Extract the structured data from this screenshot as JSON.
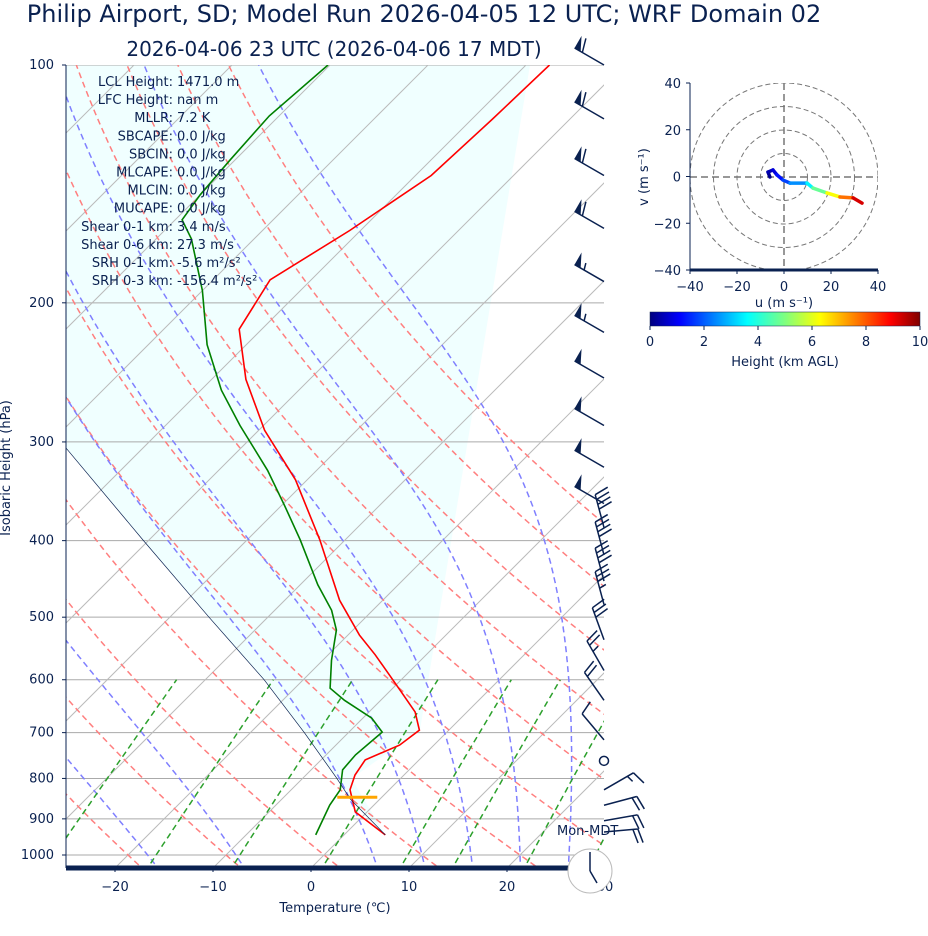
{
  "title": "Philip Airport, SD; Model Run 2026-04-05 12 UTC; WRF Domain 02",
  "subtitle": "2026-04-06 23 UTC  (2026-04-06 17 MDT)",
  "stats": [
    {
      "label": "LCL Height:",
      "value": "1471.0 m"
    },
    {
      "label": "LFC Height:",
      "value": "nan m"
    },
    {
      "label": "MLLR:",
      "value": "7.2 K"
    },
    {
      "label": "SBCAPE:",
      "value": "0.0 J/kg"
    },
    {
      "label": "SBCIN:",
      "value": "0.0 J/kg"
    },
    {
      "label": "MLCAPE:",
      "value": "0.0 J/kg"
    },
    {
      "label": "MLCIN:",
      "value": "0.0 J/kg"
    },
    {
      "label": "MUCAPE:",
      "value": "0.0 J/kg"
    },
    {
      "label": "Shear 0-1 km:",
      "value": "3.4 m/s"
    },
    {
      "label": "Shear 0-6 km:",
      "value": "27.3 m/s"
    },
    {
      "label": "SRH 0-1 km:",
      "value": "-5.6 m²/s²"
    },
    {
      "label": "SRH 0-3 km:",
      "value": "-156.4 m²/s²"
    }
  ],
  "clock_label": "Mon-MDT",
  "colors": {
    "temperature": "#ff0000",
    "dewpoint": "#008000",
    "parcel": "#0a2150",
    "dry_adiabat": "#ff7f7f",
    "moist_adiabat": "#7f7fff",
    "mixing_ratio": "#2ca02c",
    "isotherm": "#bbbbbb",
    "cape_cin_shade": "#f0ffff",
    "lcl_marker": "#ffa500",
    "text": "#0a2150"
  },
  "chart_data": [
    {
      "type": "line",
      "kind": "skew-t log-p",
      "xlabel": "Temperature (℃)",
      "ylabel": "Isobaric Height (hPa)",
      "xlim": [
        -25,
        30
      ],
      "ylim": [
        1035,
        100
      ],
      "y_scale": "log",
      "xticks": [
        "-20",
        "-10",
        "0",
        "10",
        "20",
        "30"
      ],
      "yticks": [
        "100",
        "200",
        "300",
        "400",
        "500",
        "600",
        "700",
        "800",
        "900",
        "1000"
      ],
      "grid": true,
      "series": [
        {
          "role": "temperature",
          "p": [
            943,
            882,
            827,
            792,
            758,
            726,
            695,
            659,
            618,
            558,
            527,
            476,
            399,
            335,
            290,
            250,
            216,
            187,
            162,
            138,
            117,
            100
          ],
          "T": [
            4.2,
            -1.2,
            -4.0,
            -5.0,
            -5.5,
            -3.5,
            -3.0,
            -5.3,
            -9.1,
            -15.2,
            -18.8,
            -24.4,
            -32.6,
            -41.2,
            -49.4,
            -56.5,
            -62.3,
            -64.2,
            -61.1,
            -58.4,
            -57.9,
            -57.6
          ]
        },
        {
          "role": "dewpoint",
          "p": [
            943,
            865,
            827,
            780,
            747,
            699,
            671,
            637,
            615,
            567,
            519,
            490,
            455,
            399,
            361,
            326,
            286,
            258,
            226,
            193,
            166,
            157,
            146,
            132,
            116,
            100
          ],
          "T": [
            -2.9,
            -4.5,
            -5.0,
            -6.8,
            -7.0,
            -6.6,
            -9.1,
            -13.7,
            -16.4,
            -19.1,
            -21.7,
            -24.2,
            -28.2,
            -34.6,
            -39.7,
            -45.0,
            -52.4,
            -57.9,
            -64.0,
            -70.0,
            -76.4,
            -79.3,
            -80.0,
            -80.5,
            -81.0,
            -80.2
          ]
        },
        {
          "role": "parcel",
          "p": [
            943,
            850,
            800,
            700,
            600,
            500,
            400,
            300
          ],
          "T": [
            4.2,
            -3.0,
            -6.5,
            -14.5,
            -24.0,
            -36.0,
            -50.5,
            -69.0
          ]
        }
      ],
      "lcl": {
        "p": 845,
        "T": -2.5
      },
      "wind_barbs": [
        {
          "p": 100,
          "dir": 300,
          "kt": 60
        },
        {
          "p": 117,
          "dir": 300,
          "kt": 60
        },
        {
          "p": 138,
          "dir": 300,
          "kt": 60
        },
        {
          "p": 161,
          "dir": 300,
          "kt": 60
        },
        {
          "p": 188,
          "dir": 300,
          "kt": 55
        },
        {
          "p": 218,
          "dir": 300,
          "kt": 55
        },
        {
          "p": 249,
          "dir": 300,
          "kt": 50
        },
        {
          "p": 286,
          "dir": 300,
          "kt": 50
        },
        {
          "p": 323,
          "dir": 300,
          "kt": 50
        },
        {
          "p": 359,
          "dir": 300,
          "kt": 50
        },
        {
          "p": 385,
          "dir": 345,
          "kt": 40
        },
        {
          "p": 417,
          "dir": 345,
          "kt": 40
        },
        {
          "p": 450,
          "dir": 345,
          "kt": 40
        },
        {
          "p": 482,
          "dir": 345,
          "kt": 35
        },
        {
          "p": 534,
          "dir": 340,
          "kt": 30
        },
        {
          "p": 584,
          "dir": 330,
          "kt": 25
        },
        {
          "p": 637,
          "dir": 325,
          "kt": 20
        },
        {
          "p": 715,
          "dir": 320,
          "kt": 10
        },
        {
          "p": 760,
          "dir": 0,
          "kt": 0
        },
        {
          "p": 827,
          "dir": 60,
          "kt": 15
        },
        {
          "p": 865,
          "dir": 75,
          "kt": 20
        },
        {
          "p": 905,
          "dir": 80,
          "kt": 20
        },
        {
          "p": 935,
          "dir": 85,
          "kt": 20
        }
      ]
    },
    {
      "type": "line",
      "kind": "hodograph",
      "xlabel": "u (m s⁻¹)",
      "ylabel": "v (m s⁻¹)",
      "xlim": [
        -40,
        40
      ],
      "ylim": [
        -40,
        40
      ],
      "xticks": [
        "−40",
        "−20",
        "0",
        "20",
        "40"
      ],
      "yticks": [
        "40",
        "20",
        "0",
        "−20",
        "−40"
      ],
      "rings": [
        10,
        20,
        30,
        40
      ],
      "u": [
        -6,
        -6.8,
        -4.7,
        -3,
        -0.4,
        2.6,
        9.8,
        12.3,
        18.3,
        23.8,
        29.4,
        33.2
      ],
      "v": [
        0,
        2.1,
        3,
        0.9,
        -1.3,
        -2.6,
        -2.6,
        -4.7,
        -6.8,
        -8.5,
        -8.9,
        -11.1
      ],
      "height_km": [
        0,
        0.3,
        0.6,
        1,
        1.5,
        2,
        3,
        4,
        5.5,
        7,
        8.5,
        10
      ],
      "colorbar": {
        "label": "Height (km AGL)",
        "range": [
          0,
          10
        ],
        "ticks": [
          "0",
          "2",
          "4",
          "6",
          "8",
          "10"
        ],
        "colormap": "jet"
      }
    }
  ]
}
